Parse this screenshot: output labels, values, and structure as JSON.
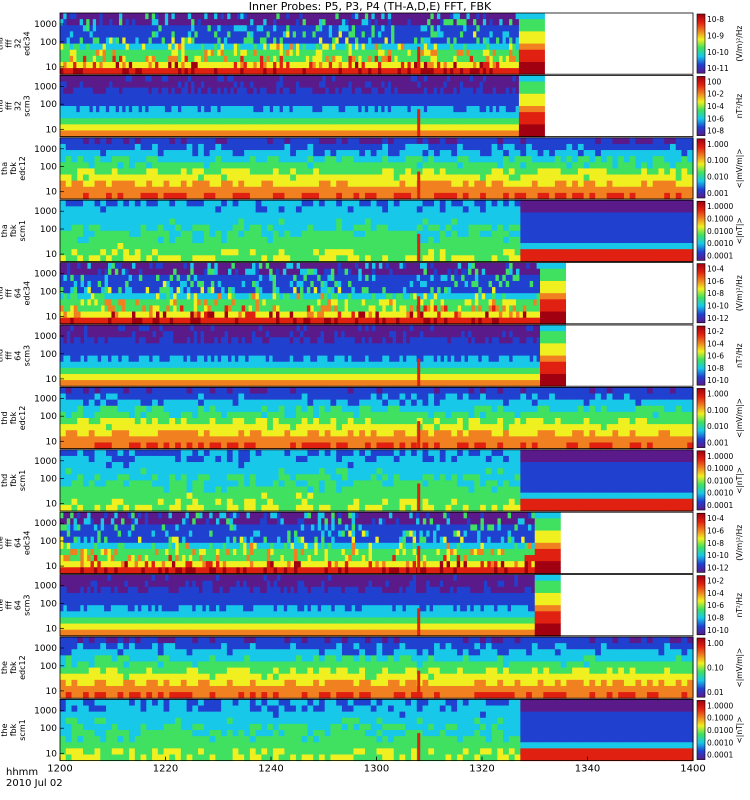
{
  "title": "Inner Probes: P5, P3, P4 (TH-A,D,E) FFT, FBK",
  "x_axis": {
    "row_label_1": "hhmm",
    "row_label_2": "2010 Jul 02",
    "ticks": [
      "1200",
      "1220",
      "1240",
      "1300",
      "1320",
      "1340",
      "1400"
    ]
  },
  "chart_data": {
    "type": "heatmap",
    "title": "Inner Probes: P5, P3, P4 (TH-A,D,E) FFT, FBK",
    "xlabel": "hhmm",
    "date": "2010 Jul 02",
    "x_range": [
      "1200",
      "1400"
    ],
    "x_ticks": [
      "1200",
      "1220",
      "1240",
      "1300",
      "1320",
      "1340",
      "1400"
    ],
    "colormap": [
      "#5a1a8a",
      "#2040d0",
      "#18c8e8",
      "#40e060",
      "#f0f020",
      "#f08020",
      "#e02010",
      "#a00010"
    ],
    "panels": [
      {
        "id": "a",
        "ylabel_lines": [
          "tha",
          "fff",
          "32",
          "edc34"
        ],
        "y_ticks": [
          "1000",
          "100",
          "10"
        ],
        "cbar_ticks": [
          "10^-8",
          "10^-9",
          "10^-10",
          "10^-11"
        ],
        "cbar_label": "(V/m)²/Hz",
        "data_end": "1327",
        "mode": "fff"
      },
      {
        "id": "a",
        "ylabel_lines": [
          "tha",
          "fff",
          "32",
          "scm3"
        ],
        "y_ticks": [
          "1000",
          "100",
          "10"
        ],
        "cbar_ticks": [
          "10^0",
          "10^-2",
          "10^-4",
          "10^-6",
          "10^-8"
        ],
        "cbar_label": "nT²/Hz",
        "data_end": "1327",
        "mode": "fff"
      },
      {
        "id": "a",
        "ylabel_lines": [
          "tha",
          "fbk",
          "edc12"
        ],
        "y_ticks": [
          "1000",
          "100",
          "10"
        ],
        "cbar_ticks": [
          "1.000",
          "0.100",
          "0.010",
          "0.001"
        ],
        "cbar_label": "<|mV/m|>",
        "data_end": "1400",
        "mode": "fbk"
      },
      {
        "id": "a",
        "ylabel_lines": [
          "tha",
          "fbk",
          "scm1"
        ],
        "y_ticks": [
          "1000",
          "100",
          "10"
        ],
        "cbar_ticks": [
          "1.0000",
          "0.1000",
          "0.0100",
          "0.0010",
          "0.0001"
        ],
        "cbar_label": "<|nT|>",
        "data_end": "1400",
        "mode": "fbk"
      },
      {
        "id": "d",
        "ylabel_lines": [
          "thd",
          "fff",
          "64",
          "edc34"
        ],
        "y_ticks": [
          "1000",
          "100",
          "10"
        ],
        "cbar_ticks": [
          "10^-4",
          "10^-6",
          "10^-8",
          "10^-10",
          "10^-12"
        ],
        "cbar_label": "(V/m)²/Hz",
        "data_end": "1331",
        "mode": "fff"
      },
      {
        "id": "d",
        "ylabel_lines": [
          "thd",
          "fff",
          "64",
          "scm3"
        ],
        "y_ticks": [
          "1000",
          "100",
          "10"
        ],
        "cbar_ticks": [
          "10^-2",
          "10^-4",
          "10^-6",
          "10^-8",
          "10^-10"
        ],
        "cbar_label": "nT²/Hz",
        "data_end": "1331",
        "mode": "fff"
      },
      {
        "id": "d",
        "ylabel_lines": [
          "thd",
          "fbk",
          "edc12"
        ],
        "y_ticks": [
          "1000",
          "100",
          "10"
        ],
        "cbar_ticks": [
          "1.000",
          "0.100",
          "0.010",
          "0.001"
        ],
        "cbar_label": "<|mV/m|>",
        "data_end": "1400",
        "mode": "fbk"
      },
      {
        "id": "d",
        "ylabel_lines": [
          "thd",
          "fbk",
          "scm1"
        ],
        "y_ticks": [
          "1000",
          "100",
          "10"
        ],
        "cbar_ticks": [
          "1.0000",
          "0.1000",
          "0.0100",
          "0.0010",
          "0.0001"
        ],
        "cbar_label": "<|nT|>",
        "data_end": "1400",
        "mode": "fbk"
      },
      {
        "id": "e",
        "ylabel_lines": [
          "the",
          "fff",
          "64",
          "edc34"
        ],
        "y_ticks": [
          "1000",
          "100",
          "10"
        ],
        "cbar_ticks": [
          "10^-4",
          "10^-6",
          "10^-8",
          "10^-10",
          "10^-12"
        ],
        "cbar_label": "(V/m)²/Hz",
        "data_end": "1330",
        "mode": "fff"
      },
      {
        "id": "e",
        "ylabel_lines": [
          "the",
          "fff",
          "64",
          "scm3"
        ],
        "y_ticks": [
          "1000",
          "100",
          "10"
        ],
        "cbar_ticks": [
          "10^-2",
          "10^-4",
          "10^-6",
          "10^-8",
          "10^-10"
        ],
        "cbar_label": "nT²/Hz",
        "data_end": "1330",
        "mode": "fff"
      },
      {
        "id": "e",
        "ylabel_lines": [
          "the",
          "fbk",
          "edc12"
        ],
        "y_ticks": [
          "1000",
          "100",
          "10"
        ],
        "cbar_ticks": [
          "1.00",
          "0.10",
          "0.01"
        ],
        "cbar_label": "<|mV/m|>",
        "data_end": "1400",
        "mode": "fbk"
      },
      {
        "id": "e",
        "ylabel_lines": [
          "the",
          "fbk",
          "scm1"
        ],
        "y_ticks": [
          "1000",
          "100",
          "10"
        ],
        "cbar_ticks": [
          "1.0000",
          "0.1000",
          "0.0100",
          "0.0010",
          "0.0001"
        ],
        "cbar_label": "<|nT|>",
        "data_end": "1400",
        "mode": "fbk"
      }
    ]
  }
}
